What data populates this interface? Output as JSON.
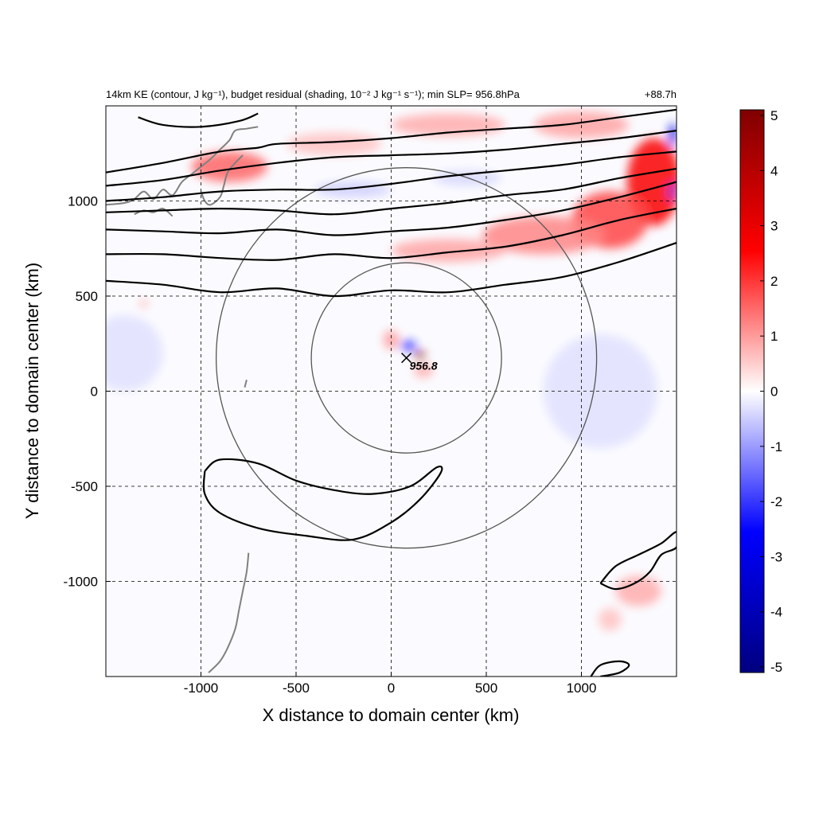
{
  "chart_data": {
    "type": "heatmap",
    "title_left": "14km KE (contour, J kg⁻¹), budget residual (shading, 10⁻² J kg⁻¹ s⁻¹); min SLP= 956.8hPa",
    "title_right": "+88.7h",
    "xlabel": "X distance to domain center (km)",
    "ylabel": "Y distance to domain center (km)",
    "xlim": [
      -1500,
      1500
    ],
    "ylim": [
      -1500,
      1500
    ],
    "x_ticks": [
      {
        "value": -1000,
        "label": "-1000"
      },
      {
        "value": -500,
        "label": "-500"
      },
      {
        "value": 0,
        "label": "0"
      },
      {
        "value": 500,
        "label": "500"
      },
      {
        "value": 1000,
        "label": "1000"
      }
    ],
    "y_ticks": [
      {
        "value": 1000,
        "label": "1000"
      },
      {
        "value": 500,
        "label": "500"
      },
      {
        "value": 0,
        "label": "0"
      },
      {
        "value": -500,
        "label": "-500"
      },
      {
        "value": -1000,
        "label": "-1000"
      }
    ],
    "grid": true,
    "colorbar": {
      "min": -5,
      "max": 5,
      "colors": {
        "low": "#000080",
        "mid_low": "#0000ff",
        "zero": "#ffffff",
        "mid_high": "#ff0000",
        "high": "#800000"
      },
      "ticks": [
        {
          "value": 5,
          "label": "5"
        },
        {
          "value": 4,
          "label": "4"
        },
        {
          "value": 3,
          "label": "3"
        },
        {
          "value": 2,
          "label": "2"
        },
        {
          "value": 1,
          "label": "1"
        },
        {
          "value": 0,
          "label": "0"
        },
        {
          "value": -1,
          "label": "-1"
        },
        {
          "value": -2,
          "label": "-2"
        },
        {
          "value": -3,
          "label": "-3"
        },
        {
          "value": -4,
          "label": "-4"
        },
        {
          "value": -5,
          "label": "-5"
        }
      ]
    },
    "storm_center": {
      "x": 80,
      "y": 175,
      "label": "956.8"
    },
    "range_circles_km": [
      500,
      1000
    ],
    "ke_contours": [
      {
        "name": "jet-contour-1",
        "points": [
          [
            -1500,
            580
          ],
          [
            -1200,
            560
          ],
          [
            -900,
            520
          ],
          [
            -600,
            540
          ],
          [
            -300,
            500
          ],
          [
            0,
            530
          ],
          [
            300,
            520
          ],
          [
            600,
            560
          ],
          [
            900,
            600
          ],
          [
            1200,
            680
          ],
          [
            1500,
            780
          ]
        ]
      },
      {
        "name": "jet-contour-2",
        "points": [
          [
            -1500,
            720
          ],
          [
            -1200,
            720
          ],
          [
            -900,
            700
          ],
          [
            -600,
            690
          ],
          [
            -300,
            720
          ],
          [
            0,
            700
          ],
          [
            300,
            730
          ],
          [
            600,
            760
          ],
          [
            900,
            820
          ],
          [
            1200,
            900
          ],
          [
            1500,
            960
          ]
        ]
      },
      {
        "name": "jet-contour-3",
        "points": [
          [
            -1500,
            850
          ],
          [
            -1200,
            840
          ],
          [
            -900,
            830
          ],
          [
            -600,
            850
          ],
          [
            -300,
            820
          ],
          [
            0,
            840
          ],
          [
            300,
            860
          ],
          [
            600,
            900
          ],
          [
            900,
            950
          ],
          [
            1200,
            1020
          ],
          [
            1500,
            1100
          ]
        ]
      },
      {
        "name": "jet-contour-4",
        "points": [
          [
            -1500,
            940
          ],
          [
            -1200,
            950
          ],
          [
            -900,
            960
          ],
          [
            -600,
            950
          ],
          [
            -300,
            930
          ],
          [
            0,
            960
          ],
          [
            300,
            990
          ],
          [
            600,
            1030
          ],
          [
            900,
            1060
          ],
          [
            1200,
            1120
          ],
          [
            1500,
            1170
          ]
        ]
      },
      {
        "name": "jet-contour-5",
        "points": [
          [
            -1500,
            1000
          ],
          [
            -1200,
            1020
          ],
          [
            -900,
            1050
          ],
          [
            -600,
            1060
          ],
          [
            -300,
            1060
          ],
          [
            0,
            1090
          ],
          [
            300,
            1130
          ],
          [
            600,
            1160
          ],
          [
            900,
            1190
          ],
          [
            1200,
            1230
          ],
          [
            1500,
            1260
          ]
        ]
      },
      {
        "name": "jet-contour-6",
        "points": [
          [
            -1500,
            1080
          ],
          [
            -1200,
            1110
          ],
          [
            -900,
            1160
          ],
          [
            -600,
            1200
          ],
          [
            -300,
            1230
          ],
          [
            0,
            1240
          ],
          [
            300,
            1250
          ],
          [
            600,
            1270
          ],
          [
            900,
            1300
          ],
          [
            1200,
            1330
          ],
          [
            1500,
            1370
          ]
        ]
      },
      {
        "name": "jet-contour-7",
        "points": [
          [
            -1500,
            1150
          ],
          [
            -1200,
            1200
          ],
          [
            -900,
            1260
          ],
          [
            -700,
            1280
          ],
          [
            -600,
            1300
          ],
          [
            -300,
            1310
          ],
          [
            0,
            1330
          ],
          [
            300,
            1360
          ],
          [
            600,
            1380
          ],
          [
            900,
            1400
          ],
          [
            1200,
            1440
          ],
          [
            1500,
            1480
          ]
        ]
      },
      {
        "name": "jet-contour-8",
        "points": [
          [
            -1330,
            1440
          ],
          [
            -1200,
            1400
          ],
          [
            -1000,
            1390
          ],
          [
            -800,
            1420
          ],
          [
            -700,
            1460
          ]
        ]
      },
      {
        "name": "south-blob-contour",
        "points": [
          [
            -980,
            -420
          ],
          [
            -900,
            -360
          ],
          [
            -700,
            -380
          ],
          [
            -500,
            -470
          ],
          [
            -300,
            -520
          ],
          [
            -100,
            -540
          ],
          [
            100,
            -500
          ],
          [
            240,
            -400
          ],
          [
            260,
            -430
          ],
          [
            150,
            -570
          ],
          [
            0,
            -690
          ],
          [
            -200,
            -780
          ],
          [
            -450,
            -760
          ],
          [
            -700,
            -720
          ],
          [
            -900,
            -640
          ],
          [
            -980,
            -540
          ],
          [
            -980,
            -420
          ]
        ]
      },
      {
        "name": "southeast-contour",
        "points": [
          [
            1100,
            -1010
          ],
          [
            1180,
            -920
          ],
          [
            1300,
            -860
          ],
          [
            1420,
            -800
          ],
          [
            1500,
            -740
          ],
          [
            1500,
            -820
          ],
          [
            1420,
            -860
          ],
          [
            1360,
            -950
          ],
          [
            1280,
            -1010
          ],
          [
            1180,
            -1040
          ],
          [
            1100,
            -1010
          ]
        ]
      },
      {
        "name": "southeast-small-contour",
        "points": [
          [
            1050,
            -1500
          ],
          [
            1100,
            -1440
          ],
          [
            1200,
            -1420
          ],
          [
            1250,
            -1440
          ],
          [
            1200,
            -1480
          ],
          [
            1100,
            -1500
          ]
        ]
      }
    ],
    "coastline": [
      {
        "name": "coastline-1",
        "points": [
          [
            -1500,
            980
          ],
          [
            -1400,
            990
          ],
          [
            -1350,
            1010
          ],
          [
            -1300,
            1050
          ],
          [
            -1250,
            1010
          ],
          [
            -1200,
            1060
          ],
          [
            -1150,
            1030
          ],
          [
            -1100,
            1100
          ],
          [
            -1050,
            1140
          ],
          [
            -1000,
            1180
          ],
          [
            -950,
            1220
          ],
          [
            -900,
            1270
          ],
          [
            -850,
            1320
          ],
          [
            -820,
            1370
          ],
          [
            -760,
            1380
          ],
          [
            -700,
            1390
          ]
        ]
      },
      {
        "name": "coastline-2",
        "points": [
          [
            -1000,
            1050
          ],
          [
            -980,
            1000
          ],
          [
            -950,
            980
          ],
          [
            -900,
            1020
          ],
          [
            -880,
            1080
          ],
          [
            -860,
            1150
          ],
          [
            -820,
            1200
          ],
          [
            -780,
            1240
          ]
        ]
      },
      {
        "name": "coastline-3",
        "points": [
          [
            -1350,
            930
          ],
          [
            -1300,
            950
          ],
          [
            -1250,
            940
          ],
          [
            -1200,
            960
          ],
          [
            -1150,
            920
          ]
        ]
      },
      {
        "name": "island-chain",
        "points": [
          [
            -750,
            -850
          ],
          [
            -760,
            -950
          ],
          [
            -780,
            -1050
          ],
          [
            -800,
            -1150
          ],
          [
            -820,
            -1250
          ],
          [
            -860,
            -1350
          ],
          [
            -900,
            -1420
          ],
          [
            -960,
            -1480
          ]
        ]
      },
      {
        "name": "small-island",
        "points": [
          [
            -760,
            60
          ],
          [
            -765,
            40
          ],
          [
            -770,
            20
          ]
        ]
      }
    ],
    "residual_features": [
      {
        "x": 1380,
        "y": 1100,
        "value": 2.6,
        "rx": 140,
        "ry": 230
      },
      {
        "x": 1150,
        "y": 900,
        "value": 1.8,
        "rx": 200,
        "ry": 150
      },
      {
        "x": 800,
        "y": 820,
        "value": 1.2,
        "rx": 320,
        "ry": 100
      },
      {
        "x": 300,
        "y": 740,
        "value": 0.9,
        "rx": 300,
        "ry": 60
      },
      {
        "x": -850,
        "y": 1180,
        "value": 1.5,
        "rx": 200,
        "ry": 80
      },
      {
        "x": -300,
        "y": 1300,
        "value": 0.6,
        "rx": 250,
        "ry": 60
      },
      {
        "x": 300,
        "y": 1400,
        "value": 0.8,
        "rx": 300,
        "ry": 60
      },
      {
        "x": 1000,
        "y": 1400,
        "value": 0.9,
        "rx": 250,
        "ry": 70
      },
      {
        "x": -200,
        "y": 1060,
        "value": -0.5,
        "rx": 200,
        "ry": 40
      },
      {
        "x": 400,
        "y": 1120,
        "value": -0.4,
        "rx": 180,
        "ry": 40
      },
      {
        "x": 150,
        "y": 190,
        "value": 5.0,
        "rx": 30,
        "ry": 20
      },
      {
        "x": 90,
        "y": 240,
        "value": -2.2,
        "rx": 40,
        "ry": 25
      },
      {
        "x": 0,
        "y": 270,
        "value": 1.0,
        "rx": 40,
        "ry": 50
      },
      {
        "x": 170,
        "y": 110,
        "value": 0.8,
        "rx": 50,
        "ry": 40
      },
      {
        "x": -1300,
        "y": 460,
        "value": 1.2,
        "rx": 15,
        "ry": 20
      },
      {
        "x": 1300,
        "y": -1050,
        "value": 0.8,
        "rx": 120,
        "ry": 80
      },
      {
        "x": 1150,
        "y": -1200,
        "value": 0.6,
        "rx": 60,
        "ry": 60
      },
      {
        "x": 1480,
        "y": 1350,
        "value": -3.0,
        "rx": 20,
        "ry": 60
      },
      {
        "x": 1480,
        "y": 1050,
        "value": -2.0,
        "rx": 15,
        "ry": 40
      },
      {
        "x": -1400,
        "y": 200,
        "value": -0.3,
        "rx": 200,
        "ry": 200
      },
      {
        "x": 1100,
        "y": 0,
        "value": -0.3,
        "rx": 300,
        "ry": 300
      }
    ]
  }
}
